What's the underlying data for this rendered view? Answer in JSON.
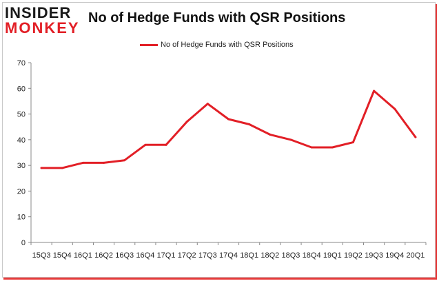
{
  "header": {
    "logo_top": "INSIDER",
    "logo_bottom": "MONKEY",
    "title": "No of Hedge Funds with QSR Positions"
  },
  "chart_data": {
    "type": "line",
    "title": "No of Hedge Funds with QSR Positions",
    "xlabel": "",
    "ylabel": "",
    "categories": [
      "15Q3",
      "15Q4",
      "16Q1",
      "16Q2",
      "16Q3",
      "16Q4",
      "17Q1",
      "17Q2",
      "17Q3",
      "17Q4",
      "18Q1",
      "18Q2",
      "18Q3",
      "18Q4",
      "19Q1",
      "19Q2",
      "19Q3",
      "19Q4",
      "20Q1"
    ],
    "series": [
      {
        "name": "No of Hedge Funds with QSR Positions",
        "color": "#e21f26",
        "values": [
          29,
          29,
          31,
          31,
          32,
          38,
          38,
          47,
          54,
          48,
          46,
          42,
          40,
          37,
          37,
          39,
          59,
          52,
          41
        ]
      }
    ],
    "ylim": [
      0,
      70
    ],
    "yticks": [
      0,
      10,
      20,
      30,
      40,
      50,
      60,
      70
    ],
    "grid": false,
    "legend": "top-center"
  }
}
